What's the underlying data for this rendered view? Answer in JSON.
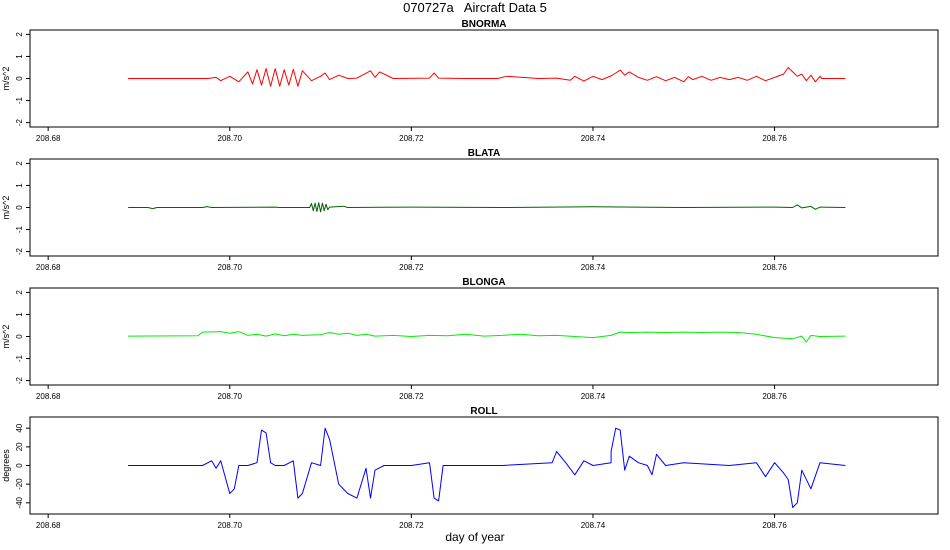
{
  "title": "070727a   Aircraft Data 5",
  "xlabel": "day of year",
  "chart_data": [
    {
      "type": "line",
      "title": "BNORMA",
      "ylabel": "m/s^2",
      "color": "#ff0000",
      "xlim": [
        208.678,
        208.778
      ],
      "ylim": [
        -2.2,
        2.2
      ],
      "xticks": [
        "208.68",
        "208.70",
        "208.72",
        "208.74",
        "208.76"
      ],
      "yticks": [
        "-2",
        "-1",
        "0",
        "1",
        "2"
      ],
      "grid": false,
      "x": [
        208.6888,
        208.6976,
        208.6985,
        208.699,
        208.7,
        208.701,
        208.702,
        208.7025,
        208.703,
        208.7035,
        208.704,
        208.7045,
        208.705,
        208.7055,
        208.706,
        208.7065,
        208.707,
        208.7075,
        208.708,
        208.709,
        208.71,
        208.7105,
        208.711,
        208.712,
        208.713,
        208.714,
        208.7155,
        208.716,
        208.7165,
        208.718,
        208.722,
        208.7225,
        208.723,
        208.726,
        208.7295,
        208.7305,
        208.734,
        208.736,
        208.7375,
        208.738,
        208.739,
        208.74,
        208.741,
        208.742,
        208.7425,
        208.743,
        208.7435,
        208.744,
        208.745,
        208.746,
        208.747,
        208.748,
        208.749,
        208.75,
        208.7505,
        208.751,
        208.752,
        208.753,
        208.754,
        208.755,
        208.756,
        208.757,
        208.758,
        208.759,
        208.76,
        208.761,
        208.7615,
        208.762,
        208.7625,
        208.763,
        208.7635,
        208.764,
        208.7645,
        208.765,
        208.7652,
        208.7678
      ],
      "values": [
        0,
        0,
        0.05,
        -0.1,
        0.1,
        -0.15,
        0.3,
        -0.25,
        0.4,
        -0.3,
        0.45,
        -0.35,
        0.45,
        -0.35,
        0.4,
        -0.3,
        0.42,
        -0.35,
        0.35,
        -0.1,
        0.1,
        0.25,
        -0.05,
        0.15,
        0,
        0.02,
        0.35,
        0.05,
        0.3,
        0,
        0.02,
        0.25,
        0.02,
        0,
        0,
        0.1,
        0,
        0.02,
        -0.08,
        0.1,
        -0.12,
        0.1,
        -0.05,
        0.12,
        0.25,
        0.38,
        0.15,
        0.3,
        0.05,
        -0.08,
        0.08,
        -0.1,
        0.05,
        -0.15,
        0.08,
        -0.05,
        0.1,
        -0.08,
        0.05,
        -0.05,
        0.05,
        -0.08,
        0.1,
        -0.1,
        0.05,
        0.2,
        0.5,
        0.3,
        0.1,
        0.2,
        -0.1,
        0.15,
        -0.15,
        0.1,
        0,
        0
      ]
    },
    {
      "type": "line",
      "title": "BLATA",
      "ylabel": "m/s^2",
      "color": "#006400",
      "xlim": [
        208.678,
        208.778
      ],
      "ylim": [
        -2.2,
        2.2
      ],
      "xticks": [
        "208.68",
        "208.70",
        "208.72",
        "208.74",
        "208.76"
      ],
      "yticks": [
        "-2",
        "-1",
        "0",
        "1",
        "2"
      ],
      "grid": false,
      "x": [
        208.6888,
        208.691,
        208.6915,
        208.692,
        208.697,
        208.6975,
        208.698,
        208.705,
        208.7055,
        208.7088,
        208.709,
        208.7092,
        208.7094,
        208.7096,
        208.7098,
        208.71,
        208.7102,
        208.7104,
        208.7106,
        208.7108,
        208.711,
        208.7125,
        208.713,
        208.72,
        208.73,
        208.74,
        208.75,
        208.76,
        208.762,
        208.7625,
        208.763,
        208.764,
        208.7645,
        208.765,
        208.7678
      ],
      "values": [
        0,
        0,
        -0.05,
        0,
        0,
        0.04,
        0,
        0.02,
        0,
        0,
        0.18,
        -0.15,
        0.2,
        -0.18,
        0.22,
        -0.2,
        0.2,
        -0.15,
        0.15,
        -0.1,
        0.02,
        0.06,
        0,
        0.02,
        0,
        0.03,
        0,
        0.02,
        0,
        0.12,
        -0.02,
        0.05,
        -0.08,
        0.02,
        0
      ]
    },
    {
      "type": "line",
      "title": "BLONGA",
      "ylabel": "m/s^2",
      "color": "#00ee00",
      "xlim": [
        208.678,
        208.778
      ],
      "ylim": [
        -2.2,
        2.2
      ],
      "xticks": [
        "208.68",
        "208.70",
        "208.72",
        "208.74",
        "208.76"
      ],
      "yticks": [
        "-2",
        "-1",
        "0",
        "1",
        "2"
      ],
      "grid": false,
      "x": [
        208.6888,
        208.6965,
        208.697,
        208.699,
        208.7,
        208.701,
        208.702,
        208.703,
        208.704,
        208.705,
        208.706,
        208.707,
        208.708,
        208.709,
        208.71,
        208.711,
        208.712,
        208.713,
        208.714,
        208.715,
        208.716,
        208.718,
        208.72,
        208.722,
        208.724,
        208.726,
        208.728,
        208.73,
        208.732,
        208.734,
        208.736,
        208.738,
        208.74,
        208.742,
        208.743,
        208.744,
        208.746,
        208.748,
        208.75,
        208.752,
        208.754,
        208.756,
        208.758,
        208.76,
        208.762,
        208.763,
        208.7635,
        208.764,
        208.765,
        208.7678
      ],
      "values": [
        0.02,
        0.03,
        0.2,
        0.22,
        0.15,
        0.22,
        0.05,
        0.1,
        0.02,
        0.12,
        0.03,
        0.1,
        0.05,
        0.07,
        0.08,
        0.18,
        0.1,
        0.15,
        0.05,
        0.1,
        0.02,
        0.05,
        0,
        0.05,
        0.03,
        0.1,
        0.02,
        0.05,
        0.1,
        0.03,
        0.05,
        0,
        -0.05,
        0.05,
        0.2,
        0.18,
        0.2,
        0.18,
        0.2,
        0.18,
        0.2,
        0.18,
        0.1,
        -0.05,
        -0.1,
        0.02,
        -0.25,
        0.05,
        0,
        0.02
      ]
    },
    {
      "type": "line",
      "title": "ROLL",
      "ylabel": "degrees",
      "color": "#0000ff",
      "xlim": [
        208.678,
        208.778
      ],
      "ylim": [
        -52,
        52
      ],
      "xticks": [
        "208.68",
        "208.70",
        "208.72",
        "208.74",
        "208.76"
      ],
      "yticks": [
        "-40",
        "-20",
        "0",
        "20",
        "40"
      ],
      "grid": false,
      "x": [
        208.6888,
        208.697,
        208.698,
        208.6985,
        208.699,
        208.7,
        208.7005,
        208.701,
        208.702,
        208.703,
        208.7035,
        208.704,
        208.7045,
        208.705,
        208.706,
        208.707,
        208.7075,
        208.708,
        208.709,
        208.71,
        208.7105,
        208.711,
        208.712,
        208.713,
        208.714,
        208.715,
        208.7155,
        208.716,
        208.717,
        208.72,
        208.722,
        208.7225,
        208.723,
        208.7235,
        208.724,
        208.73,
        208.7355,
        208.736,
        208.737,
        208.738,
        208.739,
        208.74,
        208.742,
        208.742,
        208.7425,
        208.743,
        208.7435,
        208.744,
        208.745,
        208.746,
        208.7465,
        208.747,
        208.748,
        208.75,
        208.755,
        208.758,
        208.759,
        208.76,
        208.761,
        208.7615,
        208.762,
        208.7625,
        208.763,
        208.764,
        208.765,
        208.7678
      ],
      "values": [
        0,
        0,
        5,
        -3,
        5,
        -30,
        -25,
        0,
        0,
        3,
        38,
        35,
        3,
        0,
        0,
        5,
        -35,
        -30,
        3,
        0,
        40,
        28,
        -20,
        -30,
        -35,
        -3,
        -35,
        -5,
        0,
        0,
        3,
        -35,
        -38,
        0,
        0,
        0,
        3,
        15,
        3,
        -10,
        5,
        0,
        3,
        15,
        40,
        38,
        -5,
        10,
        3,
        0,
        -10,
        12,
        0,
        3,
        0,
        3,
        -12,
        3,
        -8,
        -15,
        -45,
        -40,
        -5,
        -25,
        3,
        0
      ]
    }
  ]
}
